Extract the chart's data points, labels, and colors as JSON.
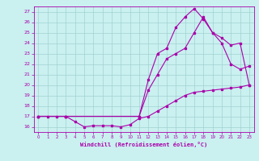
{
  "xlabel": "Windchill (Refroidissement éolien,°C)",
  "bg_color": "#caf0f0",
  "line_color": "#aa00aa",
  "grid_color": "#99cccc",
  "xlim": [
    -0.5,
    23.5
  ],
  "ylim": [
    15.5,
    27.5
  ],
  "xticks": [
    0,
    1,
    2,
    3,
    4,
    5,
    6,
    7,
    8,
    9,
    10,
    11,
    12,
    13,
    14,
    15,
    16,
    17,
    18,
    19,
    20,
    21,
    22,
    23
  ],
  "yticks": [
    16,
    17,
    18,
    19,
    20,
    21,
    22,
    23,
    24,
    25,
    26,
    27
  ],
  "line1_x": [
    0,
    1,
    2,
    3,
    4,
    5,
    6,
    7,
    8,
    9,
    10,
    11,
    12,
    13,
    14,
    15,
    16,
    17,
    18,
    19,
    20,
    21,
    22,
    23
  ],
  "line1_y": [
    17,
    17,
    17,
    17,
    16.5,
    16,
    16.1,
    16.1,
    16.1,
    16.0,
    16.2,
    16.8,
    17.0,
    17.5,
    18.0,
    18.5,
    19.0,
    19.3,
    19.4,
    19.5,
    19.6,
    19.7,
    19.8,
    20.0
  ],
  "line2_x": [
    0,
    3,
    11,
    12,
    13,
    14,
    15,
    16,
    17,
    18,
    19,
    20,
    21,
    22,
    23
  ],
  "line2_y": [
    17,
    17,
    17.0,
    20.5,
    23.0,
    23.5,
    25.5,
    26.5,
    27.3,
    26.3,
    25.0,
    24.0,
    22.0,
    21.5,
    21.8
  ],
  "line3_x": [
    0,
    3,
    11,
    12,
    13,
    14,
    15,
    16,
    17,
    18,
    19,
    20,
    21,
    22,
    23
  ],
  "line3_y": [
    17,
    17,
    17.0,
    19.5,
    21.0,
    22.5,
    23.0,
    23.5,
    25.0,
    26.5,
    25.0,
    24.5,
    23.8,
    24.0,
    20.0
  ]
}
